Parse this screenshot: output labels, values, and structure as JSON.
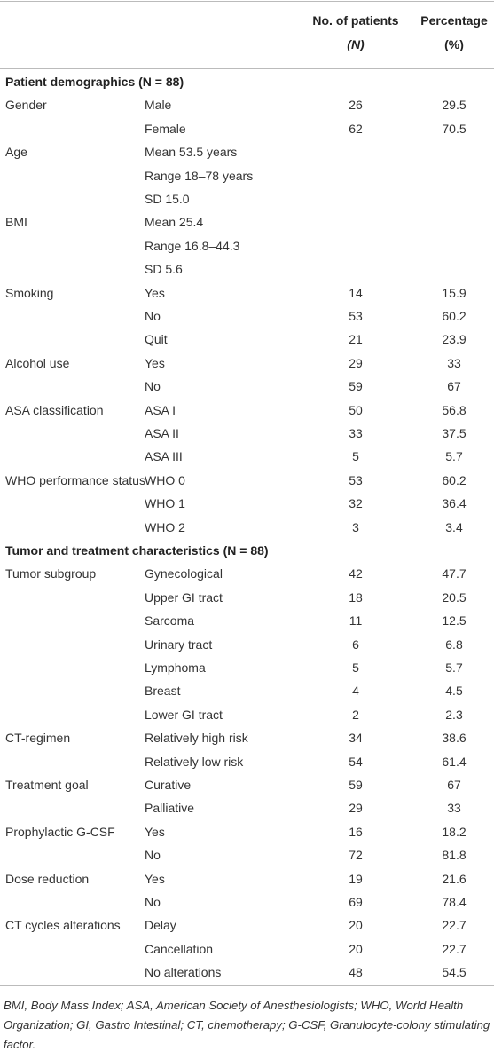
{
  "header": {
    "count_title": "No. of patients",
    "count_unit": "(N)",
    "pct_title": "Percentage",
    "pct_unit": "(%)"
  },
  "sections": [
    {
      "title": "Patient demographics (N = 88)",
      "rows": [
        [
          "Gender",
          "Male",
          26,
          29.5
        ],
        [
          null,
          "Female",
          62,
          70.5
        ],
        [
          "Age",
          "Mean 53.5 years",
          null,
          null
        ],
        [
          null,
          "Range 18–78 years",
          null,
          null
        ],
        [
          null,
          "SD 15.0",
          null,
          null
        ],
        [
          "BMI",
          "Mean 25.4",
          null,
          null
        ],
        [
          null,
          "Range 16.8–44.3",
          null,
          null
        ],
        [
          null,
          "SD 5.6",
          null,
          null
        ],
        [
          "Smoking",
          "Yes",
          14,
          15.9
        ],
        [
          null,
          "No",
          53,
          60.2
        ],
        [
          null,
          "Quit",
          21,
          23.9
        ],
        [
          "Alcohol use",
          "Yes",
          29,
          33
        ],
        [
          null,
          "No",
          59,
          67
        ],
        [
          "ASA classification",
          "ASA I",
          50,
          56.8
        ],
        [
          null,
          "ASA II",
          33,
          37.5
        ],
        [
          null,
          "ASA III",
          5,
          5.7
        ],
        [
          "WHO performance status",
          "WHO 0",
          53,
          60.2
        ],
        [
          null,
          "WHO 1",
          32,
          36.4
        ],
        [
          null,
          "WHO 2",
          3,
          3.4
        ]
      ]
    },
    {
      "title": "Tumor and treatment characteristics (N = 88)",
      "rows": [
        [
          "Tumor subgroup",
          "Gynecological",
          42,
          47.7
        ],
        [
          null,
          "Upper GI tract",
          18,
          20.5
        ],
        [
          null,
          "Sarcoma",
          11,
          12.5
        ],
        [
          null,
          "Urinary tract",
          6,
          6.8
        ],
        [
          null,
          "Lymphoma",
          5,
          5.7
        ],
        [
          null,
          "Breast",
          4,
          4.5
        ],
        [
          null,
          "Lower GI tract",
          2,
          2.3
        ],
        [
          "CT-regimen",
          "Relatively high risk",
          34,
          38.6
        ],
        [
          null,
          "Relatively low risk",
          54,
          61.4
        ],
        [
          "Treatment goal",
          "Curative",
          59,
          67
        ],
        [
          null,
          "Palliative",
          29,
          33
        ],
        [
          "Prophylactic G-CSF",
          "Yes",
          16,
          18.2
        ],
        [
          null,
          "No",
          72,
          81.8
        ],
        [
          "Dose reduction",
          "Yes",
          19,
          21.6
        ],
        [
          null,
          "No",
          69,
          78.4
        ],
        [
          "CT cycles alterations",
          "Delay",
          20,
          22.7
        ],
        [
          null,
          "Cancellation",
          20,
          22.7
        ],
        [
          null,
          "No alterations",
          48,
          54.5
        ]
      ]
    }
  ],
  "footnote": "BMI, Body Mass Index; ASA, American Society of Anesthesiologists; WHO, World Health Organization; GI, Gastro Intestinal; CT, chemotherapy; G-CSF, Granulocyte-colony stimulating factor."
}
